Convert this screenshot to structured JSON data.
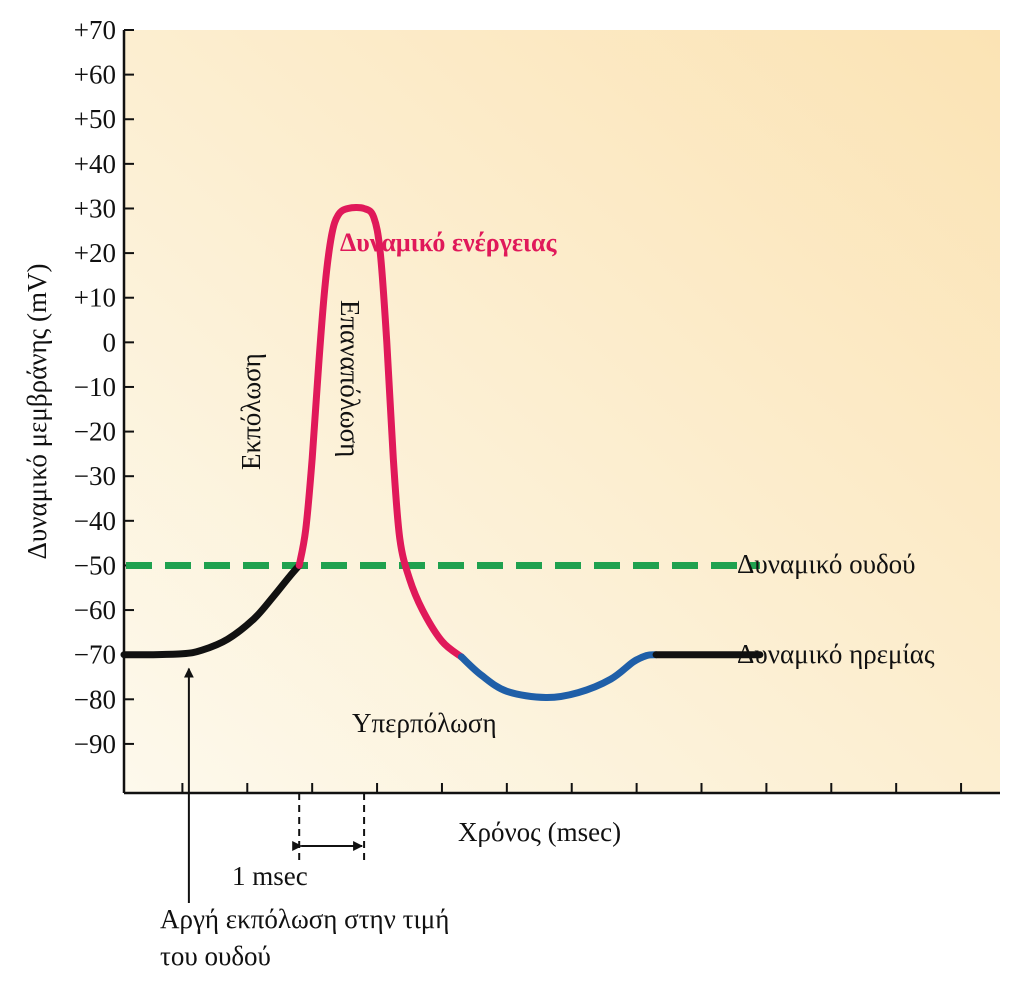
{
  "chart_data": {
    "type": "line",
    "title": "",
    "ylabel": "Δυναμικό μεμβράνης (mV)",
    "xlabel": "Χρόνος (msec)",
    "ylim": [
      -101,
      70
    ],
    "xlim": [
      -0.9,
      12.6
    ],
    "yticks": [
      70,
      60,
      50,
      40,
      30,
      20,
      10,
      0,
      -10,
      -20,
      -30,
      -40,
      -50,
      -60,
      -70,
      -80,
      -90
    ],
    "ytick_labels": [
      "+70",
      "+60",
      "+50",
      "+40",
      "+30",
      "+20",
      "+10",
      "0",
      "−10",
      "−20",
      "−30",
      "−40",
      "−50",
      "−60",
      "−70",
      "−80",
      "−90"
    ],
    "xticks": [
      0,
      1,
      2,
      3,
      4,
      5,
      6,
      7,
      8,
      9,
      10,
      11,
      12
    ],
    "grid": false,
    "background": {
      "from": "#fdf9ec",
      "to": "#fbe3b4"
    },
    "threshold": {
      "value": -50,
      "x_end": 8.9,
      "color": "#1fa14f",
      "label": "Δυναμικό ουδού"
    },
    "series": [
      {
        "label": "",
        "color": "#111111",
        "points": [
          [
            -0.9,
            -70
          ],
          [
            -0.5,
            -70
          ],
          [
            0.0,
            -69.8
          ],
          [
            0.3,
            -69.0
          ],
          [
            0.7,
            -66.5
          ],
          [
            1.1,
            -62.0
          ],
          [
            1.4,
            -57.0
          ],
          [
            1.65,
            -52.5
          ],
          [
            1.8,
            -50.0
          ]
        ]
      },
      {
        "label": "Δυναμικό ενέργειας",
        "color": "#e0195a",
        "points": [
          [
            1.8,
            -50
          ],
          [
            1.9,
            -42
          ],
          [
            2.0,
            -26
          ],
          [
            2.1,
            -5
          ],
          [
            2.2,
            13
          ],
          [
            2.3,
            24
          ],
          [
            2.4,
            28.5
          ],
          [
            2.55,
            30
          ],
          [
            2.8,
            30
          ],
          [
            2.95,
            28
          ],
          [
            3.05,
            20
          ],
          [
            3.15,
            0
          ],
          [
            3.25,
            -26
          ],
          [
            3.35,
            -44
          ],
          [
            3.5,
            -53
          ],
          [
            3.7,
            -60
          ],
          [
            4.0,
            -67
          ],
          [
            4.3,
            -70.5
          ]
        ]
      },
      {
        "label": "Υπερπόλωση",
        "color": "#1f5fa8",
        "points": [
          [
            4.3,
            -70.5
          ],
          [
            4.6,
            -74.5
          ],
          [
            5.0,
            -78.2
          ],
          [
            5.6,
            -79.6
          ],
          [
            6.1,
            -78.5
          ],
          [
            6.6,
            -75.5
          ],
          [
            6.95,
            -71.6
          ],
          [
            7.15,
            -70.2
          ],
          [
            7.3,
            -70
          ]
        ]
      },
      {
        "label": "",
        "color": "#111111",
        "points": [
          [
            7.3,
            -70
          ],
          [
            8.0,
            -70
          ],
          [
            8.9,
            -70
          ]
        ]
      }
    ],
    "annotations": {
      "action_potential": "Δυναμικό ενέργειας",
      "depolarization": "Εκπόλωση",
      "repolarization": "Επαναπόλωση",
      "hyperpolarization": "Υπερπόλωση",
      "resting_potential": "Δυναμικό ηρεμίας",
      "slow_depolarization_line1": "Αργή εκπόλωση στην τιμή",
      "slow_depolarization_line2": "του ουδού",
      "interval": "1 msec",
      "interval_from": 1.8,
      "interval_to": 2.8,
      "arrow_x": 0.1
    }
  }
}
